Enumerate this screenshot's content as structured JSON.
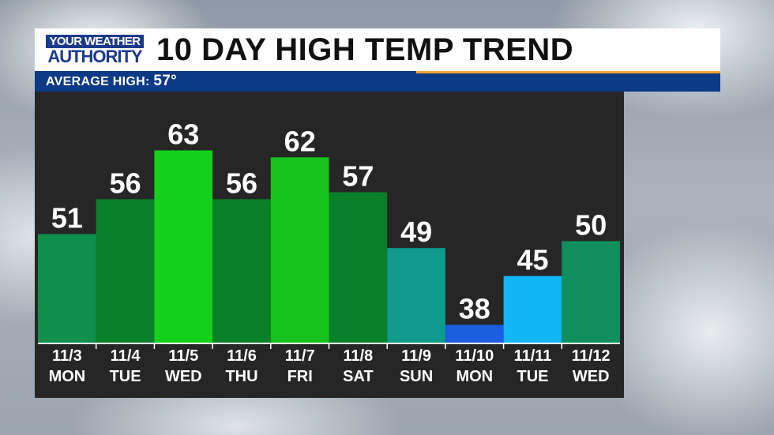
{
  "header": {
    "logo_top": "YOUR WEATHER",
    "logo_bottom": "AUTHORITY",
    "title": "10 DAY HIGH TEMP TREND"
  },
  "subbar": {
    "label": "AVERAGE HIGH:",
    "value": "57°"
  },
  "colors": {
    "header_blue": "#0d3a86",
    "accent_orange": "#f0a32a",
    "panel_bg": "#262626"
  },
  "chart_data": {
    "type": "bar",
    "title": "10 DAY HIGH TEMP TREND",
    "categories": [
      [
        "11/3",
        "MON"
      ],
      [
        "11/4",
        "TUE"
      ],
      [
        "11/5",
        "WED"
      ],
      [
        "11/6",
        "THU"
      ],
      [
        "11/7",
        "FRI"
      ],
      [
        "11/8",
        "SAT"
      ],
      [
        "11/9",
        "SUN"
      ],
      [
        "11/10",
        "MON"
      ],
      [
        "11/11",
        "TUE"
      ],
      [
        "11/12",
        "WED"
      ]
    ],
    "values": [
      51,
      56,
      63,
      56,
      62,
      57,
      49,
      38,
      45,
      50
    ],
    "bar_colors": [
      "#0e8f4a",
      "#0a7f2a",
      "#14d01a",
      "#0a7f2a",
      "#16c41c",
      "#0a7f2a",
      "#0e9b8e",
      "#1b5fe0",
      "#12b5f5",
      "#0e8f5c"
    ],
    "ylim": [
      36,
      68
    ],
    "grid": false,
    "legend": "none"
  }
}
